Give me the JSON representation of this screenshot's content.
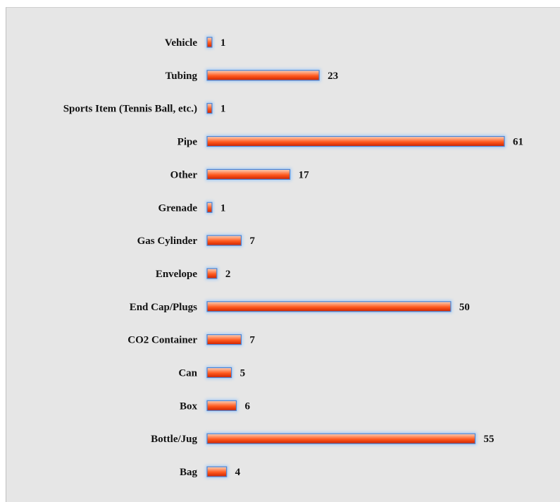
{
  "chart_data": {
    "type": "bar",
    "orientation": "horizontal",
    "title": "",
    "xlabel": "",
    "ylabel": "",
    "categories": [
      "Vehicle",
      "Tubing",
      "Sports Item (Tennis Ball, etc.)",
      "Pipe",
      "Other",
      "Grenade",
      "Gas Cylinder",
      "Envelope",
      "End Cap/Plugs",
      "CO2 Container",
      "Can",
      "Box",
      "Bottle/Jug",
      "Bag"
    ],
    "values": [
      1,
      23,
      1,
      61,
      17,
      1,
      7,
      2,
      50,
      7,
      5,
      6,
      55,
      4
    ],
    "xlim": [
      0,
      61
    ],
    "grid": false,
    "legend": "none",
    "data_labels": true,
    "colors": {
      "bar_fill_top": "#ffd2b8",
      "bar_fill_mid": "#ff5a1f",
      "bar_fill_bottom": "#cc2200",
      "bar_border": "#4a84d4",
      "bar_glow": "#a9cdf5",
      "panel_background": "#e6e6e6"
    }
  }
}
